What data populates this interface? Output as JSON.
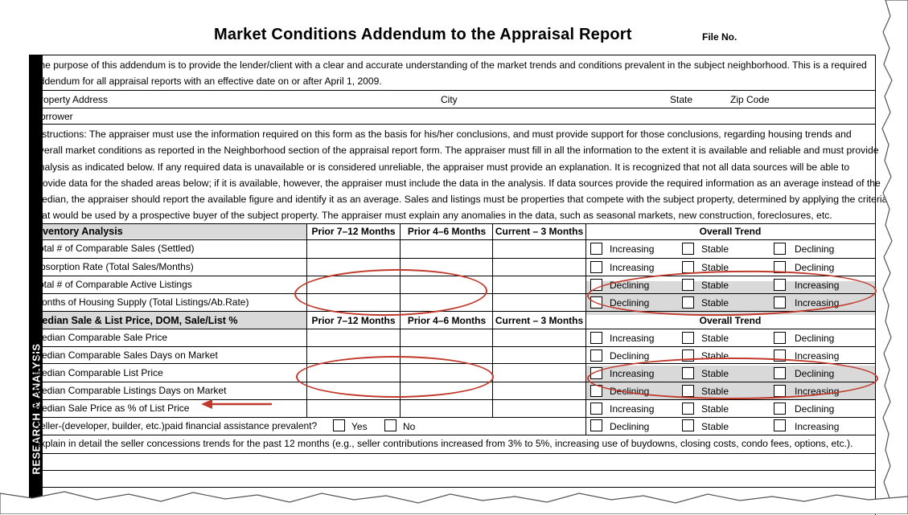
{
  "title": "Market Conditions Addendum to the Appraisal Report",
  "file_no_label": "File No.",
  "side_label": "RESEARCH & ANALYSIS",
  "purpose_line1": "The purpose of this addendum is to provide the lender/client with a clear and accurate understanding of the market trends and conditions prevalent in the subject neighborhood. This is a required",
  "purpose_line2": "addendum for all appraisal reports with an effective date on or after April 1, 2009.",
  "property_address_label": "Property Address",
  "city_label": "City",
  "state_label": "State",
  "zip_label": "Zip Code",
  "borrower_label": "Borrower",
  "instructions": [
    "Instructions:  The appraiser must use the information required on this form as the basis for his/her conclusions, and must provide support for those conclusions, regarding housing trends and",
    "overall market conditions as reported in the Neighborhood section of the appraisal report form. The appraiser must fill in all the information to the extent it is available and reliable and must provide",
    "analysis as indicated below.  If any required data is unavailable or is considered unreliable, the appraiser must provide an explanation. It is recognized that not all data sources will be able to",
    "provide data for the shaded areas below; if it is available, however, the appraiser must include the data in the analysis. If data sources provide the required information as an average instead of the",
    "median, the appraiser should report the available figure and identify it as an average. Sales and listings must be properties that compete with the subject property, determined by applying the criteria",
    "that would be used by a prospective buyer of the subject property. The appraiser must explain any anomalies in the data, such as seasonal markets, new construction, foreclosures, etc."
  ],
  "inventory": {
    "heading": "Inventory Analysis",
    "col1": "Prior 7–12 Months",
    "col2": "Prior 4–6 Months",
    "col3": "Current – 3 Months",
    "trend": "Overall Trend",
    "rows": [
      {
        "label": "Total # of Comparable Sales (Settled)",
        "t1": "Increasing",
        "t2": "Stable",
        "t3": "Declining"
      },
      {
        "label": "Absorption Rate (Total Sales/Months)",
        "t1": "Increasing",
        "t2": "Stable",
        "t3": "Declining"
      },
      {
        "label": "Total # of Comparable Active Listings",
        "t1": "Declining",
        "t2": "Stable",
        "t3": "Increasing"
      },
      {
        "label": "Months of Housing Supply (Total Listings/Ab.Rate)",
        "t1": "Declining",
        "t2": "Stable",
        "t3": "Increasing"
      }
    ]
  },
  "median": {
    "heading": "Median Sale & List Price, DOM, Sale/List %",
    "col1": "Prior 7–12 Months",
    "col2": "Prior 4–6 Months",
    "col3": "Current – 3 Months",
    "trend": "Overall Trend",
    "rows": [
      {
        "label": "Median Comparable Sale Price",
        "t1": "Increasing",
        "t2": "Stable",
        "t3": "Declining"
      },
      {
        "label": "Median Comparable Sales Days on Market",
        "t1": "Declining",
        "t2": "Stable",
        "t3": "Increasing"
      },
      {
        "label": "Median Comparable List Price",
        "t1": "Increasing",
        "t2": "Stable",
        "t3": "Declining"
      },
      {
        "label": "Median Comparable Listings Days on Market",
        "t1": "Declining",
        "t2": "Stable",
        "t3": "Increasing"
      },
      {
        "label": "Median Sale Price as % of List Price",
        "t1": "Increasing",
        "t2": "Stable",
        "t3": "Declining"
      }
    ]
  },
  "seller_row": {
    "label": "Seller-(developer, builder, etc.)paid financial assistance prevalent?",
    "yes": "Yes",
    "no": "No",
    "t1": "Declining",
    "t2": "Stable",
    "t3": "Increasing"
  },
  "explain": "Explain in detail the seller concessions trends for the past 12 months (e.g., seller contributions increased from 3% to 5%, increasing use of buydowns, closing costs, condo fees, options, etc.).",
  "annotation_color": "#c0392b",
  "shade_color": "#d9d9d9"
}
